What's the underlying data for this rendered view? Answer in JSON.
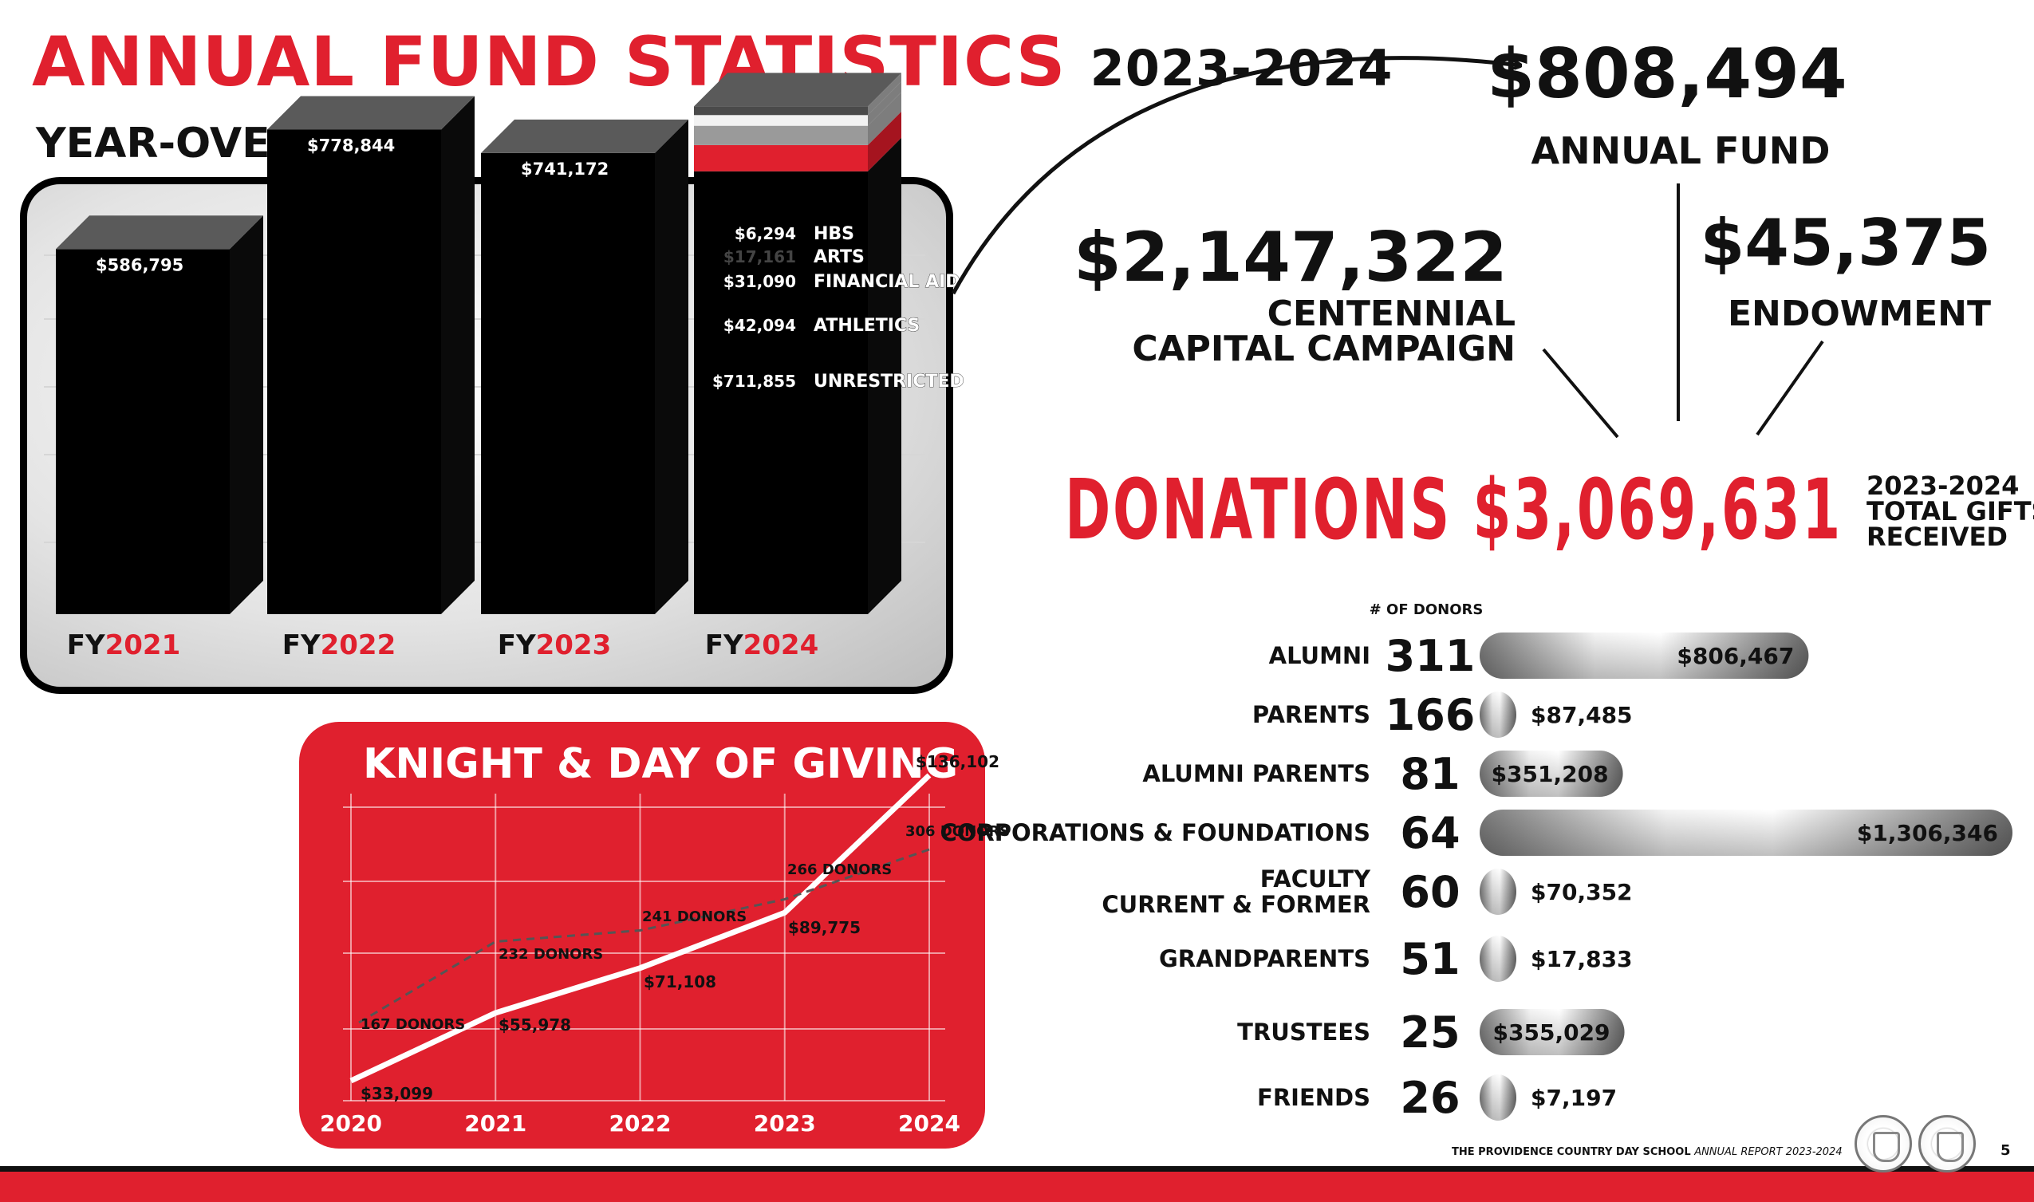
{
  "header": {
    "title": "ANNUAL FUND STATISTICS",
    "title_year": "2023-2024",
    "subtitle": "YEAR-OVER-YEAR"
  },
  "colors": {
    "accent": "#e0202e",
    "dark": "#111111",
    "bar_top": "#5a5a5a"
  },
  "funds": {
    "annual_fund": {
      "value": "$808,494",
      "label": "ANNUAL FUND"
    },
    "capital_campaign": {
      "value": "$2,147,322",
      "label_line1": "CENTENNIAL",
      "label_line2": "CAPITAL CAMPAIGN"
    },
    "endowment": {
      "value": "$45,375",
      "label": "ENDOWMENT"
    }
  },
  "donations": {
    "label": "DONATIONS",
    "value": "$3,069,631",
    "note_line1": "2023-2024",
    "note_line2": "TOTAL GIFTS",
    "note_line3": "RECEIVED"
  },
  "footer": {
    "school": "THE PROVIDENCE COUNTRY DAY SCHOOL",
    "report": "ANNUAL REPORT 2023-2024",
    "page": "5"
  },
  "chart_data": [
    {
      "type": "bar",
      "categories": [
        "FY2021",
        "FY2022",
        "FY2023",
        "FY2024"
      ],
      "category_prefix": "FY",
      "category_years": [
        "2021",
        "2022",
        "2023",
        "2024"
      ],
      "values": [
        586795,
        778844,
        741172,
        808494
      ],
      "value_labels": [
        "$586,795",
        "$778,844",
        "$741,172",
        ""
      ],
      "stack_fy2024": [
        {
          "name": "UNRESTRICTED",
          "value": 711855,
          "label": "$711,855",
          "color": "#000000"
        },
        {
          "name": "ATHLETICS",
          "value": 42094,
          "label": "$42,094",
          "color": "#e0202e"
        },
        {
          "name": "FINANCIAL AID",
          "value": 31090,
          "label": "$31,090",
          "color": "#9a9a9a"
        },
        {
          "name": "ARTS",
          "value": 17161,
          "label": "$17,161",
          "color": "#f2f2f2"
        },
        {
          "name": "HBS",
          "value": 6294,
          "label": "$6,294",
          "color": "#4a4a4a"
        }
      ]
    },
    {
      "type": "line",
      "title": "KNIGHT & DAY OF GIVING",
      "x": [
        "2020",
        "2021",
        "2022",
        "2023",
        "2024"
      ],
      "series": [
        {
          "values": [
            33099,
            55978,
            71108,
            89775,
            136102
          ],
          "labels": [
            "$33,099",
            "$55,978",
            "$71,108",
            "$89,775",
            "$136,102"
          ]
        },
        {
          "values": [
            167,
            232,
            241,
            266,
            306
          ],
          "labels": [
            "167 DONORS",
            "232 DONORS",
            "241 DONORS",
            "266 DONORS",
            "306 DONORS"
          ]
        }
      ]
    },
    {
      "type": "bar",
      "orientation": "horizontal",
      "count_header": "# OF DONORS",
      "categories": [
        "ALUMNI",
        "PARENTS",
        "ALUMNI PARENTS",
        "CORPORATIONS & FOUNDATIONS",
        "FACULTY CURRENT & FORMER",
        "GRANDPARENTS",
        "TRUSTEES",
        "FRIENDS"
      ],
      "category_lines": [
        [
          "ALUMNI"
        ],
        [
          "PARENTS"
        ],
        [
          "ALUMNI PARENTS"
        ],
        [
          "CORPORATIONS & FOUNDATIONS"
        ],
        [
          "FACULTY",
          "CURRENT & FORMER"
        ],
        [
          "GRANDPARENTS"
        ],
        [
          "TRUSTEES"
        ],
        [
          "FRIENDS"
        ]
      ],
      "donors": [
        "311",
        "166",
        "81",
        "64",
        "60",
        "51",
        "25",
        "26"
      ],
      "values": [
        806467,
        87485,
        351208,
        1306346,
        70352,
        17833,
        355029,
        7197
      ],
      "value_labels": [
        "$806,467",
        "$87,485",
        "$351,208",
        "$1,306,346",
        "$70,352",
        "$17,833",
        "$355,029",
        "$7,197"
      ]
    }
  ]
}
